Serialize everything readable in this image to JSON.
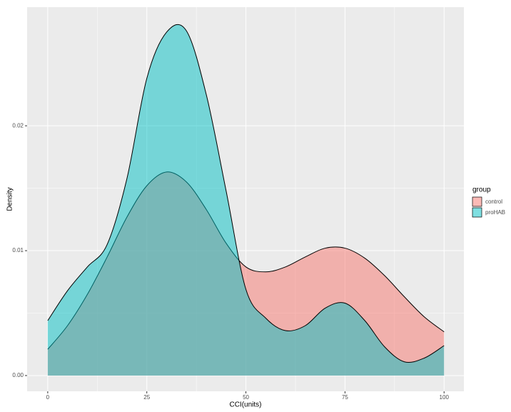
{
  "chart_data": {
    "type": "area",
    "x_label": "CCI(units)",
    "y_label": "Density",
    "x": [
      0,
      5,
      10,
      15,
      20,
      25,
      30,
      35,
      40,
      45,
      50,
      55,
      60,
      65,
      70,
      75,
      80,
      85,
      90,
      95,
      100
    ],
    "series": [
      {
        "name": "control",
        "color": "#F8766D",
        "values": [
          0.0021,
          0.004,
          0.0065,
          0.0095,
          0.0127,
          0.0152,
          0.0163,
          0.0155,
          0.0133,
          0.0106,
          0.0087,
          0.0083,
          0.0087,
          0.0095,
          0.0102,
          0.0102,
          0.0094,
          0.008,
          0.0063,
          0.0047,
          0.0035
        ]
      },
      {
        "name": "proHAB",
        "color": "#00BFC4",
        "values": [
          0.0044,
          0.0068,
          0.0087,
          0.0105,
          0.0158,
          0.0238,
          0.0275,
          0.0276,
          0.0225,
          0.0148,
          0.0069,
          0.0046,
          0.0036,
          0.004,
          0.0054,
          0.0058,
          0.0044,
          0.0023,
          0.0011,
          0.0014,
          0.0024
        ]
      }
    ],
    "xlim": [
      -5.2,
      105
    ],
    "xticks": [
      0,
      25,
      50,
      75,
      100
    ],
    "ylim": [
      -0.00126,
      0.0295
    ],
    "yticks": [
      {
        "value": 0,
        "label": "0.00"
      },
      {
        "value": 0.01,
        "label": "0.01"
      },
      {
        "value": 0.02,
        "label": "0.02"
      }
    ],
    "grid": true,
    "fill_opacity": 0.5,
    "legend_title": "group",
    "legend_position": "right"
  }
}
